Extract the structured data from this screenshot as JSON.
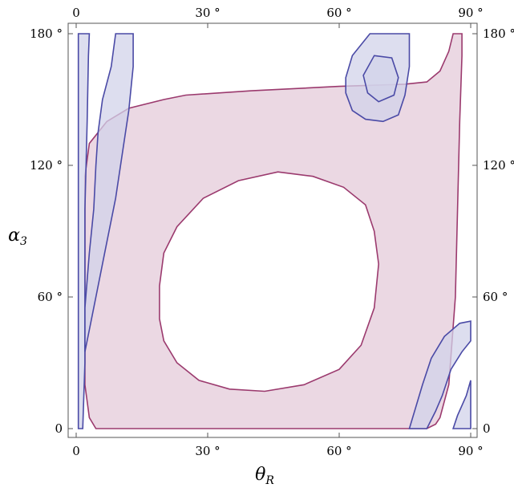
{
  "chart_data": {
    "type": "area",
    "title": "",
    "xlabel": {
      "symbol": "θ",
      "subscript": "R"
    },
    "ylabel": {
      "symbol": "α",
      "subscript": "3"
    },
    "xlim": [
      0,
      90
    ],
    "ylim": [
      0,
      180
    ],
    "x_ticks": [
      {
        "value": 0,
        "label": "0"
      },
      {
        "value": 30,
        "label": "30 °"
      },
      {
        "value": 60,
        "label": "60 °"
      },
      {
        "value": 90,
        "label": "90 °"
      }
    ],
    "y_ticks": [
      {
        "value": 0,
        "label": "0"
      },
      {
        "value": 60,
        "label": "60 °"
      },
      {
        "value": 120,
        "label": "120 °"
      },
      {
        "value": 180,
        "label": "180 °"
      }
    ],
    "grid": false,
    "colors": {
      "pink_fill": "#ead6e2",
      "pink_stroke": "#9b3a6e",
      "blue_fill": "#d2d3ea",
      "blue_stroke": "#4a4aa6"
    },
    "pink_region": {
      "outer": [
        [
          4.5,
          0
        ],
        [
          80,
          0
        ],
        [
          82,
          2
        ],
        [
          83,
          5
        ],
        [
          85,
          20
        ],
        [
          86.5,
          60
        ],
        [
          87,
          100
        ],
        [
          87.5,
          140
        ],
        [
          88,
          170
        ],
        [
          88,
          180
        ],
        [
          86,
          180
        ],
        [
          85,
          172
        ],
        [
          83,
          163
        ],
        [
          80,
          158
        ],
        [
          75,
          157
        ],
        [
          60,
          156
        ],
        [
          40,
          154
        ],
        [
          25,
          152
        ],
        [
          20,
          150
        ],
        [
          12,
          146
        ],
        [
          7,
          140
        ],
        [
          3,
          130
        ],
        [
          2,
          115
        ],
        [
          2,
          60
        ],
        [
          2,
          20
        ],
        [
          3,
          5
        ],
        [
          4.5,
          0
        ]
      ],
      "hole": [
        [
          46,
          117
        ],
        [
          54,
          115
        ],
        [
          61,
          110
        ],
        [
          66,
          102
        ],
        [
          68,
          90
        ],
        [
          69,
          75
        ],
        [
          68,
          55
        ],
        [
          65,
          38
        ],
        [
          60,
          27
        ],
        [
          52,
          20
        ],
        [
          43,
          17
        ],
        [
          35,
          18
        ],
        [
          28,
          22
        ],
        [
          23,
          30
        ],
        [
          20,
          40
        ],
        [
          19,
          50
        ],
        [
          19,
          65
        ],
        [
          20,
          80
        ],
        [
          23,
          92
        ],
        [
          29,
          105
        ],
        [
          37,
          113
        ],
        [
          46,
          117
        ]
      ]
    },
    "blue_regions": [
      [
        [
          0.5,
          0
        ],
        [
          1.5,
          0
        ],
        [
          2,
          30
        ],
        [
          2,
          60
        ],
        [
          2,
          100
        ],
        [
          2.5,
          140
        ],
        [
          2.8,
          170
        ],
        [
          3,
          180
        ],
        [
          0.5,
          180
        ],
        [
          0.5,
          0
        ]
      ],
      [
        [
          9,
          180
        ],
        [
          13,
          180
        ],
        [
          13,
          165
        ],
        [
          12,
          145
        ],
        [
          10.5,
          125
        ],
        [
          9,
          105
        ],
        [
          6.5,
          80
        ],
        [
          4.5,
          60
        ],
        [
          3,
          45
        ],
        [
          2,
          35
        ],
        [
          2,
          55
        ],
        [
          3,
          80
        ],
        [
          4,
          100
        ],
        [
          4.5,
          120
        ],
        [
          5,
          135
        ],
        [
          6,
          150
        ],
        [
          8,
          165
        ],
        [
          9,
          180
        ]
      ],
      [
        [
          67,
          180
        ],
        [
          76,
          180
        ],
        [
          76,
          165
        ],
        [
          75,
          152
        ],
        [
          73.5,
          143
        ],
        [
          70,
          140
        ],
        [
          66,
          141
        ],
        [
          63,
          145
        ],
        [
          61.5,
          153
        ],
        [
          61.5,
          160
        ],
        [
          63,
          170
        ],
        [
          67,
          180
        ]
      ],
      [
        [
          68,
          170
        ],
        [
          72,
          169
        ],
        [
          73.5,
          160
        ],
        [
          72.5,
          152
        ],
        [
          69,
          149
        ],
        [
          66.5,
          153
        ],
        [
          65.5,
          161
        ],
        [
          68,
          170
        ]
      ],
      [
        [
          76,
          0
        ],
        [
          80,
          0
        ],
        [
          82,
          8
        ],
        [
          83.5,
          15
        ],
        [
          85.5,
          27
        ],
        [
          88,
          35
        ],
        [
          90,
          40
        ],
        [
          90,
          49
        ],
        [
          87.5,
          48
        ],
        [
          84,
          42
        ],
        [
          81,
          32
        ],
        [
          79,
          20
        ],
        [
          76,
          0
        ]
      ],
      [
        [
          86,
          0
        ],
        [
          90,
          0
        ],
        [
          90,
          22
        ],
        [
          89,
          15
        ],
        [
          87,
          6
        ],
        [
          86,
          0
        ]
      ]
    ]
  }
}
